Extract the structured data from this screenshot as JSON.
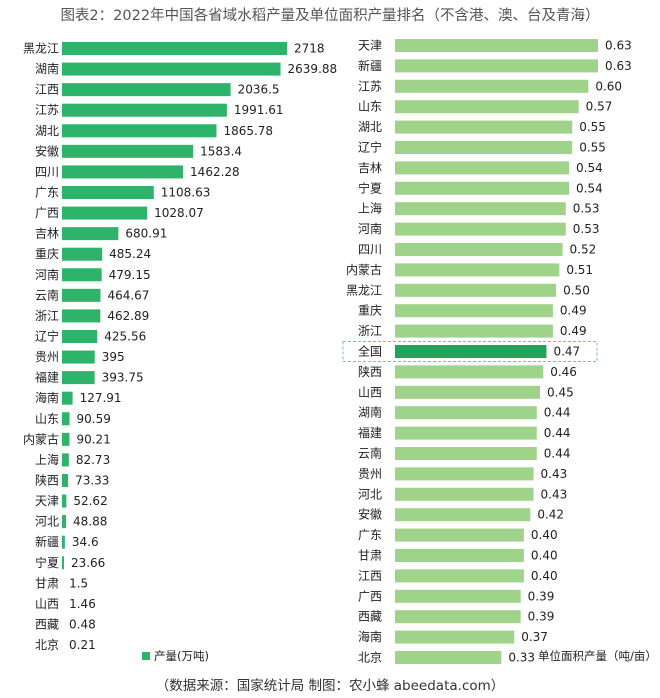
{
  "title": "图表2：2022年中国各省域水稻产量及单位面积产量排名（不含港、澳、台及青海）",
  "footer": "（数据来源：国家统计局    制图：农小蜂 abeedata.com）",
  "colors": {
    "production_bar": "#2db36a",
    "yield_bar": "#9fd38a",
    "yield_bar_highlight": "#22a35a",
    "highlight_box": "#7fb6e0"
  },
  "chart_data": [
    {
      "type": "bar",
      "orientation": "horizontal",
      "legend": "产量(万吨)",
      "legend_position": "bottom",
      "categories": [
        "黑龙江",
        "湖南",
        "江西",
        "江苏",
        "湖北",
        "安徽",
        "四川",
        "广东",
        "广西",
        "吉林",
        "重庆",
        "河南",
        "云南",
        "浙江",
        "辽宁",
        "贵州",
        "福建",
        "海南",
        "山东",
        "内蒙古",
        "上海",
        "陕西",
        "天津",
        "河北",
        "新疆",
        "宁夏",
        "甘肃",
        "山西",
        "西藏",
        "北京"
      ],
      "values": [
        2718,
        2639.88,
        2036.5,
        1991.61,
        1865.78,
        1583.4,
        1462.28,
        1108.63,
        1028.07,
        680.91,
        485.24,
        479.15,
        464.67,
        462.89,
        425.56,
        395,
        393.75,
        127.91,
        90.59,
        90.21,
        82.73,
        73.33,
        52.62,
        48.88,
        34.6,
        23.66,
        1.5,
        1.46,
        0.48,
        0.21
      ],
      "value_labels": [
        "2718",
        "2639.88",
        "2036.5",
        "1991.61",
        "1865.78",
        "1583.4",
        "1462.28",
        "1108.63",
        "1028.07",
        "680.91",
        "485.24",
        "479.15",
        "464.67",
        "462.89",
        "425.56",
        "395",
        "393.75",
        "127.91",
        "90.59",
        "90.21",
        "82.73",
        "73.33",
        "52.62",
        "48.88",
        "34.6",
        "23.66",
        "1.5",
        "1.46",
        "0.48",
        "0.21"
      ],
      "xlim": [
        0,
        2718
      ]
    },
    {
      "type": "bar",
      "orientation": "horizontal",
      "legend": "单位面积产量（吨/亩）",
      "legend_position": "bottom-right",
      "highlight": "全国",
      "categories": [
        "天津",
        "新疆",
        "江苏",
        "山东",
        "湖北",
        "辽宁",
        "吉林",
        "宁夏",
        "上海",
        "河南",
        "四川",
        "内蒙古",
        "黑龙江",
        "重庆",
        "浙江",
        "全国",
        "陕西",
        "山西",
        "湖南",
        "福建",
        "云南",
        "贵州",
        "河北",
        "安徽",
        "广东",
        "甘肃",
        "江西",
        "广西",
        "西藏",
        "海南",
        "北京"
      ],
      "values": [
        0.63,
        0.63,
        0.6,
        0.57,
        0.55,
        0.55,
        0.54,
        0.54,
        0.53,
        0.53,
        0.52,
        0.51,
        0.5,
        0.49,
        0.49,
        0.47,
        0.46,
        0.45,
        0.44,
        0.44,
        0.44,
        0.43,
        0.43,
        0.42,
        0.4,
        0.4,
        0.4,
        0.39,
        0.39,
        0.37,
        0.33
      ],
      "value_labels": [
        "0.63",
        "0.63",
        "0.60",
        "0.57",
        "0.55",
        "0.55",
        "0.54",
        "0.54",
        "0.53",
        "0.53",
        "0.52",
        "0.51",
        "0.50",
        "0.49",
        "0.49",
        "0.47",
        "0.46",
        "0.45",
        "0.44",
        "0.44",
        "0.44",
        "0.43",
        "0.43",
        "0.42",
        "0.40",
        "0.40",
        "0.40",
        "0.39",
        "0.39",
        "0.37",
        "0.33"
      ],
      "xlim": [
        0,
        0.63
      ]
    }
  ]
}
